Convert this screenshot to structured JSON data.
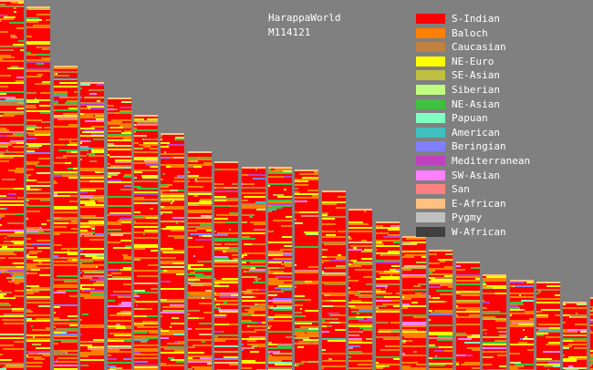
{
  "chart_data": {
    "type": "bar",
    "stacked": true,
    "title": "HarappaWorld",
    "subtitle": "M114121",
    "legend_position": "top-right",
    "grid": false,
    "components": [
      {
        "name": "S-Indian",
        "color": "#ff0000"
      },
      {
        "name": "Baloch",
        "color": "#ff8000"
      },
      {
        "name": "Caucasian",
        "color": "#c08040"
      },
      {
        "name": "NE-Euro",
        "color": "#ffff00"
      },
      {
        "name": "SE-Asian",
        "color": "#c0c040"
      },
      {
        "name": "Siberian",
        "color": "#c0ff80"
      },
      {
        "name": "NE-Asian",
        "color": "#40c040"
      },
      {
        "name": "Papuan",
        "color": "#80ffc0"
      },
      {
        "name": "American",
        "color": "#40c0c0"
      },
      {
        "name": "Beringian",
        "color": "#8080ff"
      },
      {
        "name": "Mediterranean",
        "color": "#c040c0"
      },
      {
        "name": "SW-Asian",
        "color": "#ff80ff"
      },
      {
        "name": "San",
        "color": "#ff8080"
      },
      {
        "name": "E-African",
        "color": "#ffc080"
      },
      {
        "name": "Pygmy",
        "color": "#c0c0c0"
      },
      {
        "name": "W-African",
        "color": "#404040"
      }
    ],
    "column_heights": [
      1.0,
      0.983,
      0.822,
      0.778,
      0.736,
      0.689,
      0.641,
      0.591,
      0.563,
      0.55,
      0.55,
      0.542,
      0.484,
      0.436,
      0.402,
      0.362,
      0.324,
      0.294,
      0.258,
      0.245,
      0.238,
      0.185,
      0.197
    ]
  }
}
